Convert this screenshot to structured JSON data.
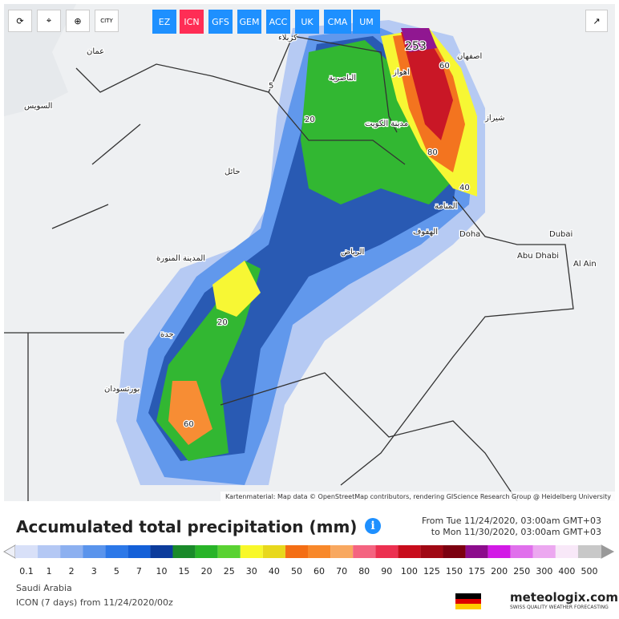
{
  "toolbar": {
    "city": "CITY",
    "models": [
      "EZ",
      "ICN",
      "GFS",
      "GEM",
      "ACC",
      "UK",
      "CMA",
      "UM"
    ],
    "active_model": "ICN"
  },
  "map": {
    "labels": [
      "عمان",
      "السويس",
      "كربلاء",
      "اصفهان",
      "الناصرية",
      "اهواز",
      "مدينة الكويت",
      "شيراز",
      "حائل",
      "المنامة",
      "الهفوف",
      "Doha",
      "Dubai",
      "Abu Dhabi",
      "Al Ain",
      "الرياض",
      "المدينة المنورة",
      "جدة",
      "بورتسودان"
    ],
    "contour_labels": [
      "253",
      "60",
      "80",
      "40",
      "20",
      "5",
      "60",
      "20"
    ],
    "attribution": "Kartenmaterial: Map data © OpenStreetMap contributors, rendering GIScience Research Group @ Heidelberg University"
  },
  "title": "Accumulated total precipitation (mm)",
  "period": {
    "from": "From Tue 11/24/2020, 03:00am GMT+03",
    "to": "to Mon 11/30/2020, 03:00am GMT+03"
  },
  "legend": {
    "labels": [
      "0.1",
      "1",
      "2",
      "3",
      "5",
      "7",
      "10",
      "15",
      "20",
      "25",
      "30",
      "40",
      "50",
      "60",
      "70",
      "80",
      "90",
      "100",
      "125",
      "150",
      "175",
      "200",
      "250",
      "300",
      "400",
      "500"
    ],
    "colors": [
      "#d8e0f8",
      "#b4c8f4",
      "#8cb0f0",
      "#5a94ec",
      "#2c78e8",
      "#1460d8",
      "#0c3c9c",
      "#1a8a2a",
      "#28b428",
      "#5ad232",
      "#f8f82a",
      "#e8d81c",
      "#f46e14",
      "#f8882a",
      "#f8a860",
      "#f46480",
      "#ec3050",
      "#c80c1c",
      "#a00814",
      "#7c0010",
      "#8c0c8c",
      "#d21ae6",
      "#e070ec",
      "#eca8f0",
      "#f8e8f8",
      "#c8c8c8"
    ]
  },
  "region": "Saudi Arabia",
  "model_info": "ICON  (7 days) from 11/24/2020/00z",
  "brand": {
    "name": "meteologix.com",
    "tagline": "SWISS QUALITY WEATHER FORECASTING"
  }
}
